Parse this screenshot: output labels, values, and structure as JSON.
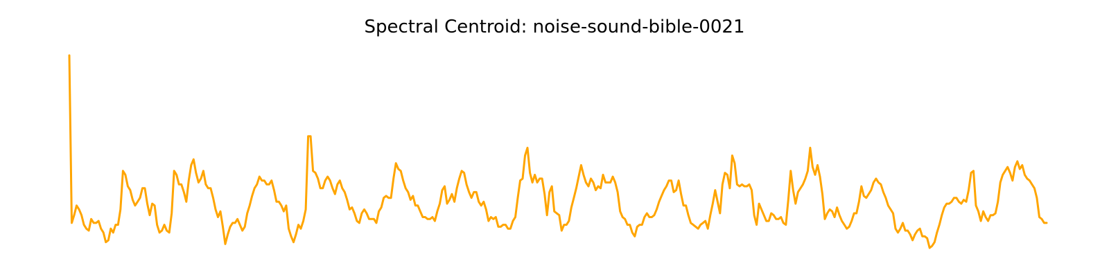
{
  "chart_data": {
    "type": "line",
    "title": "Spectral Centroid: noise-sound-bible-0021",
    "xlabel": "",
    "ylabel": "",
    "axes_visible": false,
    "grid": false,
    "line_color": "#FFA500",
    "ylim": [
      0,
      1
    ],
    "series": [
      {
        "values": [
          1.0,
          0.13,
          0.17,
          0.22,
          0.2,
          0.17,
          0.12,
          0.1,
          0.09,
          0.15,
          0.13,
          0.13,
          0.14,
          0.1,
          0.08,
          0.03,
          0.04,
          0.1,
          0.08,
          0.12,
          0.12,
          0.2,
          0.4,
          0.38,
          0.32,
          0.3,
          0.25,
          0.22,
          0.24,
          0.26,
          0.31,
          0.31,
          0.23,
          0.17,
          0.23,
          0.22,
          0.12,
          0.08,
          0.09,
          0.12,
          0.09,
          0.08,
          0.18,
          0.4,
          0.38,
          0.33,
          0.33,
          0.29,
          0.24,
          0.35,
          0.43,
          0.46,
          0.39,
          0.34,
          0.36,
          0.4,
          0.33,
          0.31,
          0.31,
          0.26,
          0.2,
          0.16,
          0.19,
          0.11,
          0.02,
          0.07,
          0.11,
          0.13,
          0.13,
          0.15,
          0.12,
          0.09,
          0.11,
          0.18,
          0.22,
          0.27,
          0.31,
          0.33,
          0.37,
          0.35,
          0.35,
          0.33,
          0.33,
          0.35,
          0.3,
          0.24,
          0.24,
          0.22,
          0.19,
          0.22,
          0.1,
          0.06,
          0.03,
          0.07,
          0.12,
          0.1,
          0.14,
          0.2,
          0.58,
          0.58,
          0.4,
          0.39,
          0.36,
          0.31,
          0.31,
          0.35,
          0.37,
          0.35,
          0.31,
          0.28,
          0.33,
          0.35,
          0.31,
          0.29,
          0.25,
          0.2,
          0.21,
          0.18,
          0.14,
          0.13,
          0.18,
          0.2,
          0.18,
          0.15,
          0.15,
          0.15,
          0.13,
          0.19,
          0.21,
          0.26,
          0.27,
          0.26,
          0.26,
          0.36,
          0.44,
          0.41,
          0.4,
          0.35,
          0.31,
          0.29,
          0.25,
          0.27,
          0.22,
          0.22,
          0.19,
          0.16,
          0.16,
          0.15,
          0.15,
          0.16,
          0.14,
          0.19,
          0.23,
          0.3,
          0.32,
          0.23,
          0.25,
          0.28,
          0.24,
          0.31,
          0.36,
          0.4,
          0.39,
          0.33,
          0.29,
          0.26,
          0.29,
          0.29,
          0.24,
          0.22,
          0.24,
          0.2,
          0.14,
          0.16,
          0.15,
          0.16,
          0.11,
          0.11,
          0.12,
          0.12,
          0.1,
          0.1,
          0.14,
          0.16,
          0.26,
          0.35,
          0.36,
          0.48,
          0.52,
          0.39,
          0.34,
          0.38,
          0.34,
          0.36,
          0.36,
          0.28,
          0.17,
          0.29,
          0.32,
          0.19,
          0.18,
          0.17,
          0.09,
          0.12,
          0.12,
          0.14,
          0.21,
          0.26,
          0.31,
          0.37,
          0.43,
          0.38,
          0.34,
          0.32,
          0.36,
          0.34,
          0.3,
          0.32,
          0.31,
          0.38,
          0.34,
          0.34,
          0.34,
          0.37,
          0.34,
          0.29,
          0.19,
          0.16,
          0.15,
          0.12,
          0.12,
          0.08,
          0.06,
          0.11,
          0.12,
          0.12,
          0.16,
          0.18,
          0.16,
          0.16,
          0.17,
          0.2,
          0.24,
          0.27,
          0.3,
          0.32,
          0.35,
          0.35,
          0.29,
          0.3,
          0.35,
          0.28,
          0.22,
          0.22,
          0.17,
          0.13,
          0.12,
          0.11,
          0.1,
          0.12,
          0.13,
          0.14,
          0.1,
          0.17,
          0.23,
          0.3,
          0.24,
          0.18,
          0.33,
          0.39,
          0.38,
          0.31,
          0.48,
          0.44,
          0.33,
          0.32,
          0.33,
          0.32,
          0.32,
          0.33,
          0.3,
          0.17,
          0.12,
          0.23,
          0.2,
          0.17,
          0.14,
          0.14,
          0.18,
          0.17,
          0.15,
          0.15,
          0.16,
          0.13,
          0.12,
          0.25,
          0.4,
          0.3,
          0.23,
          0.29,
          0.31,
          0.33,
          0.36,
          0.4,
          0.52,
          0.42,
          0.38,
          0.43,
          0.37,
          0.28,
          0.15,
          0.18,
          0.2,
          0.19,
          0.16,
          0.21,
          0.17,
          0.14,
          0.12,
          0.1,
          0.11,
          0.14,
          0.18,
          0.18,
          0.24,
          0.32,
          0.27,
          0.26,
          0.28,
          0.3,
          0.34,
          0.36,
          0.34,
          0.33,
          0.29,
          0.26,
          0.22,
          0.2,
          0.18,
          0.1,
          0.08,
          0.1,
          0.13,
          0.09,
          0.09,
          0.07,
          0.04,
          0.07,
          0.09,
          0.1,
          0.06,
          0.06,
          0.05,
          0.0,
          0.01,
          0.03,
          0.08,
          0.12,
          0.17,
          0.21,
          0.23,
          0.23,
          0.24,
          0.26,
          0.26,
          0.24,
          0.23,
          0.25,
          0.24,
          0.3,
          0.39,
          0.4,
          0.22,
          0.19,
          0.14,
          0.19,
          0.16,
          0.14,
          0.17,
          0.17,
          0.18,
          0.24,
          0.34,
          0.38,
          0.4,
          0.42,
          0.39,
          0.35,
          0.42,
          0.45,
          0.41,
          0.43,
          0.38,
          0.36,
          0.35,
          0.33,
          0.31,
          0.26,
          0.16,
          0.15,
          0.13,
          0.13
        ]
      }
    ]
  }
}
